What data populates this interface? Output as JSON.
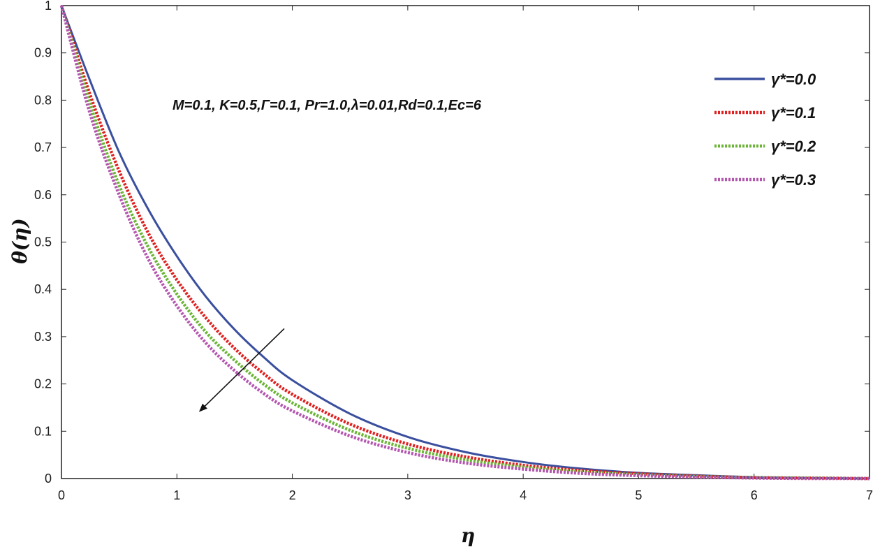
{
  "chart_data": {
    "type": "line",
    "title": "",
    "xlabel": "η",
    "ylabel": "θ(η)",
    "xlim": [
      0,
      7
    ],
    "ylim": [
      0,
      1
    ],
    "x_ticks": [
      "0",
      "1",
      "2",
      "3",
      "4",
      "5",
      "6",
      "7"
    ],
    "y_ticks": [
      "0",
      "0.1",
      "0.2",
      "0.3",
      "0.4",
      "0.5",
      "0.6",
      "0.7",
      "0.8",
      "0.9",
      "1"
    ],
    "grid": false,
    "legend_position": "top-right",
    "annotation": "M=0.1, K=0.5,Γ=0.1, Pr=1.0,λ=0.01,Rd=0.1,Ec=6",
    "arrow": {
      "from": [
        1.93,
        0.317
      ],
      "to": [
        1.2,
        0.143
      ]
    },
    "x": [
      0,
      0.25,
      0.5,
      0.75,
      1,
      1.25,
      1.5,
      1.75,
      2,
      2.5,
      3,
      3.5,
      4,
      4.5,
      5,
      5.5,
      6,
      6.5,
      7
    ],
    "series": [
      {
        "name": "γ*=0.0",
        "color": "#3a4f9e",
        "style": "solid",
        "values": [
          1.0,
          0.84,
          0.69,
          0.57,
          0.47,
          0.385,
          0.315,
          0.257,
          0.208,
          0.137,
          0.088,
          0.056,
          0.035,
          0.021,
          0.012,
          0.007,
          0.003,
          0.001,
          0.0
        ]
      },
      {
        "name": "γ*=0.1",
        "color": "#e02020",
        "style": "dotted",
        "values": [
          1.0,
          0.81,
          0.65,
          0.52,
          0.42,
          0.34,
          0.275,
          0.222,
          0.178,
          0.115,
          0.073,
          0.046,
          0.028,
          0.017,
          0.01,
          0.005,
          0.002,
          0.001,
          0.0
        ]
      },
      {
        "name": "γ*=0.2",
        "color": "#6ab536",
        "style": "dotted",
        "values": [
          1.0,
          0.79,
          0.62,
          0.49,
          0.39,
          0.31,
          0.25,
          0.2,
          0.16,
          0.102,
          0.064,
          0.04,
          0.024,
          0.014,
          0.008,
          0.004,
          0.002,
          0.001,
          0.0
        ]
      },
      {
        "name": "γ*=0.3",
        "color": "#b455b0",
        "style": "dotted",
        "values": [
          1.0,
          0.77,
          0.6,
          0.465,
          0.365,
          0.287,
          0.228,
          0.18,
          0.143,
          0.09,
          0.055,
          0.033,
          0.02,
          0.011,
          0.006,
          0.003,
          0.001,
          0.0,
          0.0
        ]
      }
    ]
  }
}
